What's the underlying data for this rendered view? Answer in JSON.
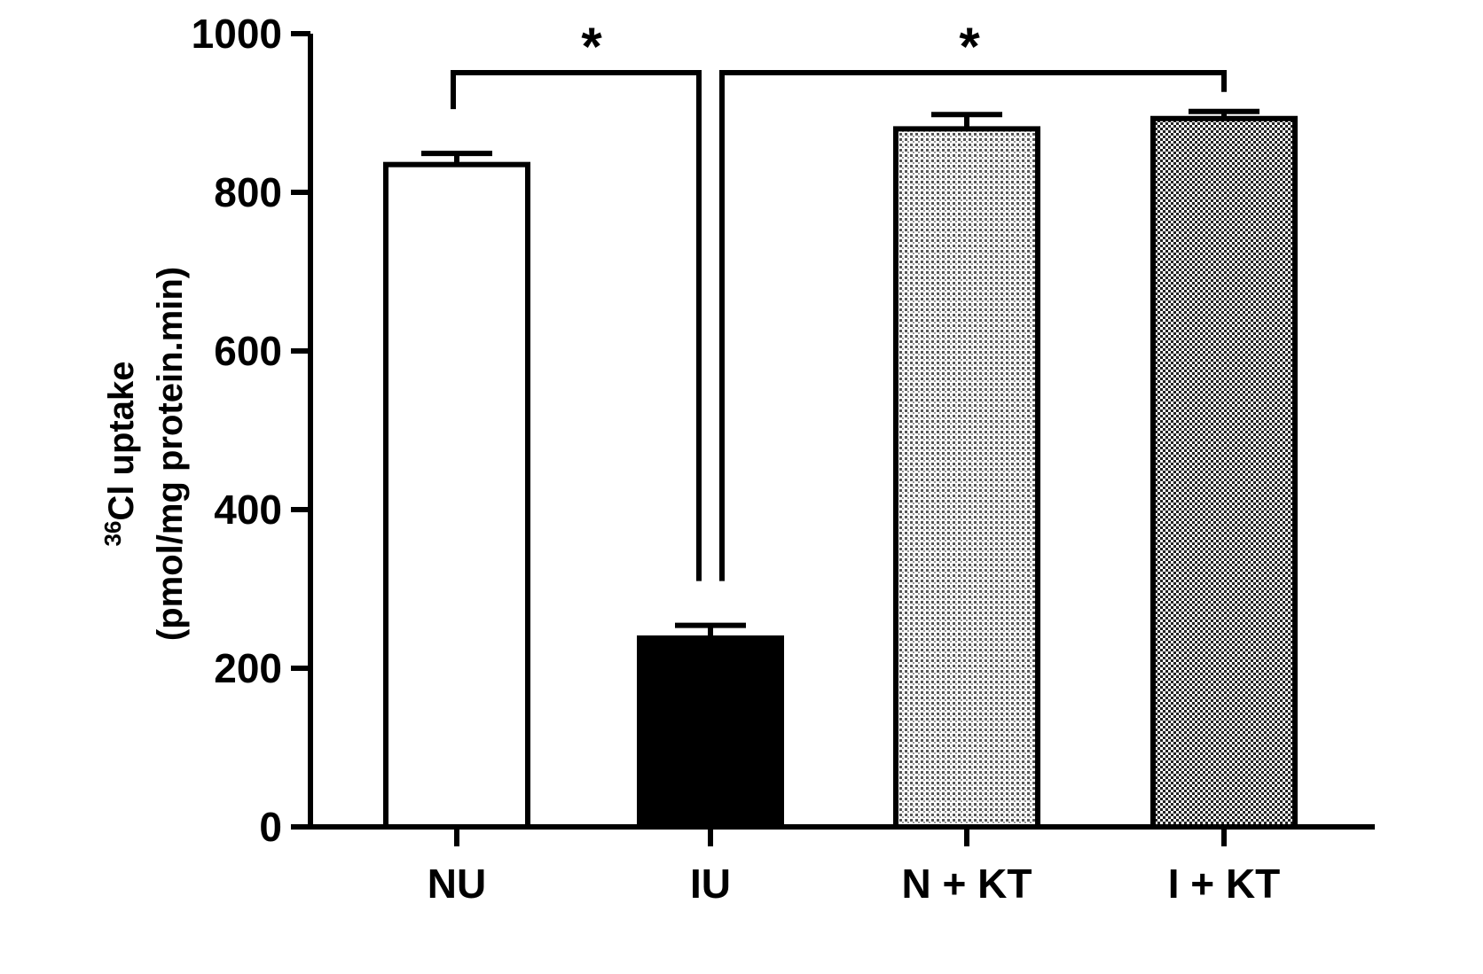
{
  "chart_data": {
    "type": "bar",
    "categories": [
      "NU",
      "IU",
      "N + KT",
      "I + KT"
    ],
    "values": [
      835,
      238,
      880,
      893
    ],
    "errors": [
      14,
      16,
      18,
      9
    ],
    "fills": [
      "white",
      "black",
      "dense-hatch",
      "checker"
    ],
    "ylabel": {
      "superscript": "36",
      "line1": "Cl uptake",
      "line2": "(pmol/mg protein.min)"
    },
    "ylim": [
      0,
      1000
    ],
    "yticks": [
      0,
      200,
      400,
      600,
      800,
      1000
    ],
    "significance": [
      {
        "from": "NU",
        "to": "IU",
        "label": "*"
      },
      {
        "from": "IU",
        "to": "I + KT",
        "label": "*"
      }
    ],
    "grid": false,
    "legend": "none"
  }
}
